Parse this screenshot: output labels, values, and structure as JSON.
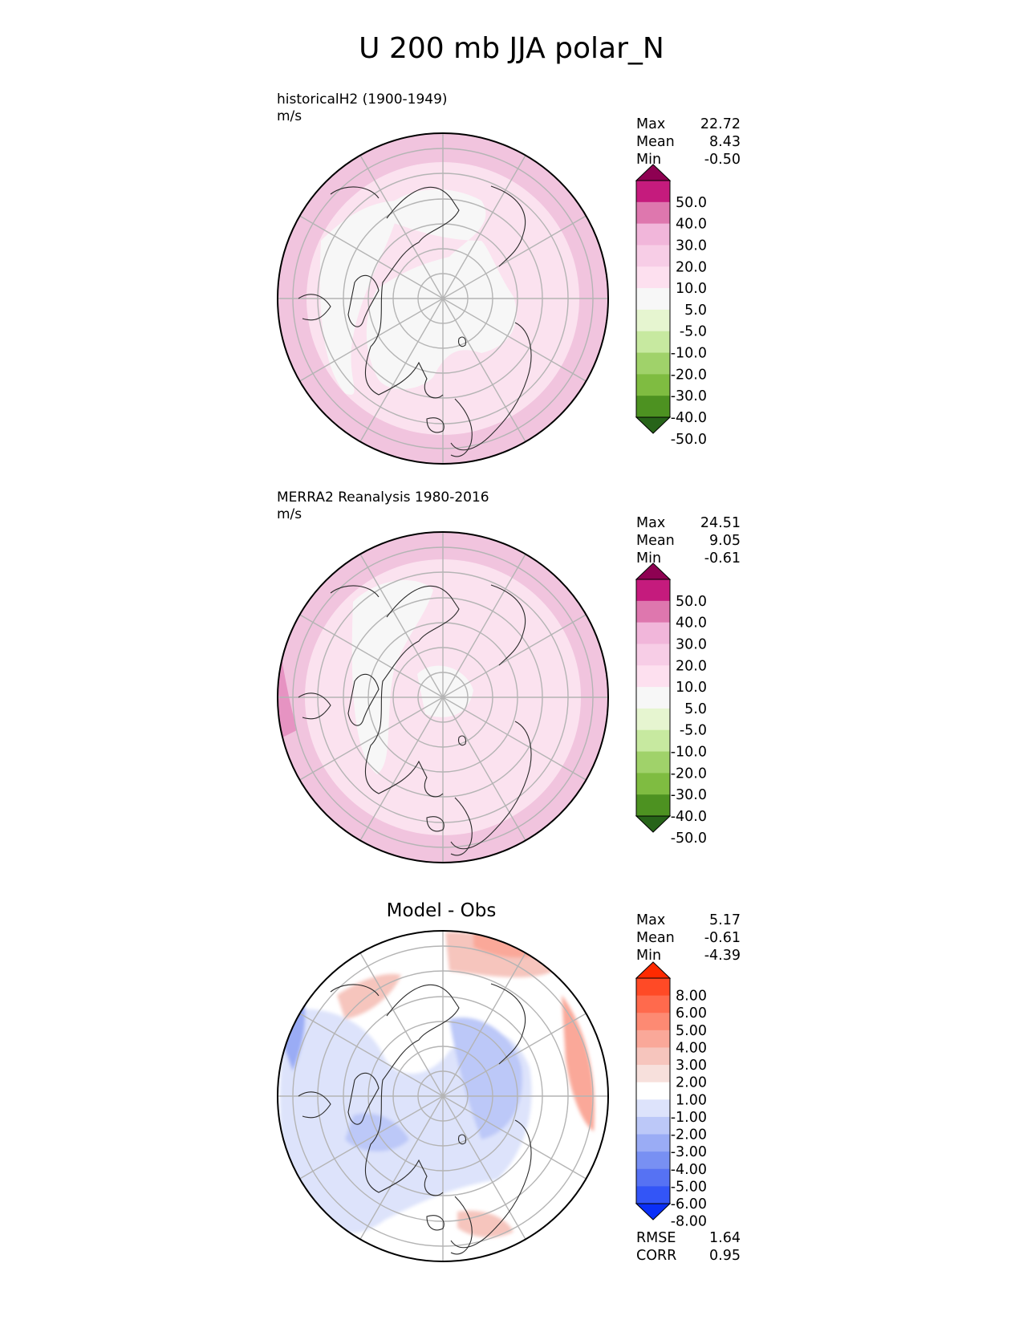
{
  "title": "U 200 mb JJA polar_N",
  "chart_data": [
    {
      "type": "heatmap",
      "projection": "north-polar-stereographic",
      "title": "historicalH2 (1900-1949)",
      "units": "m/s",
      "stats": [
        {
          "label": "Max",
          "value": "22.72"
        },
        {
          "label": "Mean",
          "value": "8.43"
        },
        {
          "label": "Min",
          "value": "-0.50"
        }
      ],
      "colorbar": {
        "levels": [
          "50.0",
          "40.0",
          "30.0",
          "20.0",
          "10.0",
          "5.0",
          "-5.0",
          "-10.0",
          "-20.0",
          "-30.0",
          "-40.0",
          "-50.0"
        ],
        "colors": [
          "#8e0152",
          "#c51b7d",
          "#de77ae",
          "#f1b6da",
          "#f7cde6",
          "#fde0ef",
          "#f7f7f7",
          "#e6f5d0",
          "#c7e9a0",
          "#a0d26a",
          "#7fbc41",
          "#4d9221",
          "#276419"
        ],
        "extend": "both"
      }
    },
    {
      "type": "heatmap",
      "projection": "north-polar-stereographic",
      "title": "MERRA2 Reanalysis 1980-2016",
      "units": "m/s",
      "stats": [
        {
          "label": "Max",
          "value": "24.51"
        },
        {
          "label": "Mean",
          "value": "9.05"
        },
        {
          "label": "Min",
          "value": "-0.61"
        }
      ],
      "colorbar": {
        "levels": [
          "50.0",
          "40.0",
          "30.0",
          "20.0",
          "10.0",
          "5.0",
          "-5.0",
          "-10.0",
          "-20.0",
          "-30.0",
          "-40.0",
          "-50.0"
        ],
        "colors": [
          "#8e0152",
          "#c51b7d",
          "#de77ae",
          "#f1b6da",
          "#f7cde6",
          "#fde0ef",
          "#f7f7f7",
          "#e6f5d0",
          "#c7e9a0",
          "#a0d26a",
          "#7fbc41",
          "#4d9221",
          "#276419"
        ],
        "extend": "both"
      }
    },
    {
      "type": "heatmap",
      "projection": "north-polar-stereographic",
      "title": "Model - Obs",
      "units": "",
      "stats": [
        {
          "label": "Max",
          "value": "5.17"
        },
        {
          "label": "Mean",
          "value": "-0.61"
        },
        {
          "label": "Min",
          "value": "-4.39"
        }
      ],
      "metrics": [
        {
          "label": "RMSE",
          "value": "1.64"
        },
        {
          "label": "CORR",
          "value": "0.95"
        }
      ],
      "colorbar": {
        "levels": [
          "8.00",
          "6.00",
          "5.00",
          "4.00",
          "3.00",
          "2.00",
          "1.00",
          "-1.00",
          "-2.00",
          "-3.00",
          "-4.00",
          "-5.00",
          "-6.00",
          "-8.00"
        ],
        "colors": [
          "#ff2a00",
          "#ff4a26",
          "#ff6a4d",
          "#fd8a73",
          "#faa899",
          "#f6c5bd",
          "#f7e0dc",
          "#ffffff",
          "#dde3fb",
          "#bcc8f8",
          "#9aacf5",
          "#7890f3",
          "#5672f3",
          "#3355f7",
          "#0a2ff7"
        ],
        "extend": "both"
      }
    }
  ]
}
